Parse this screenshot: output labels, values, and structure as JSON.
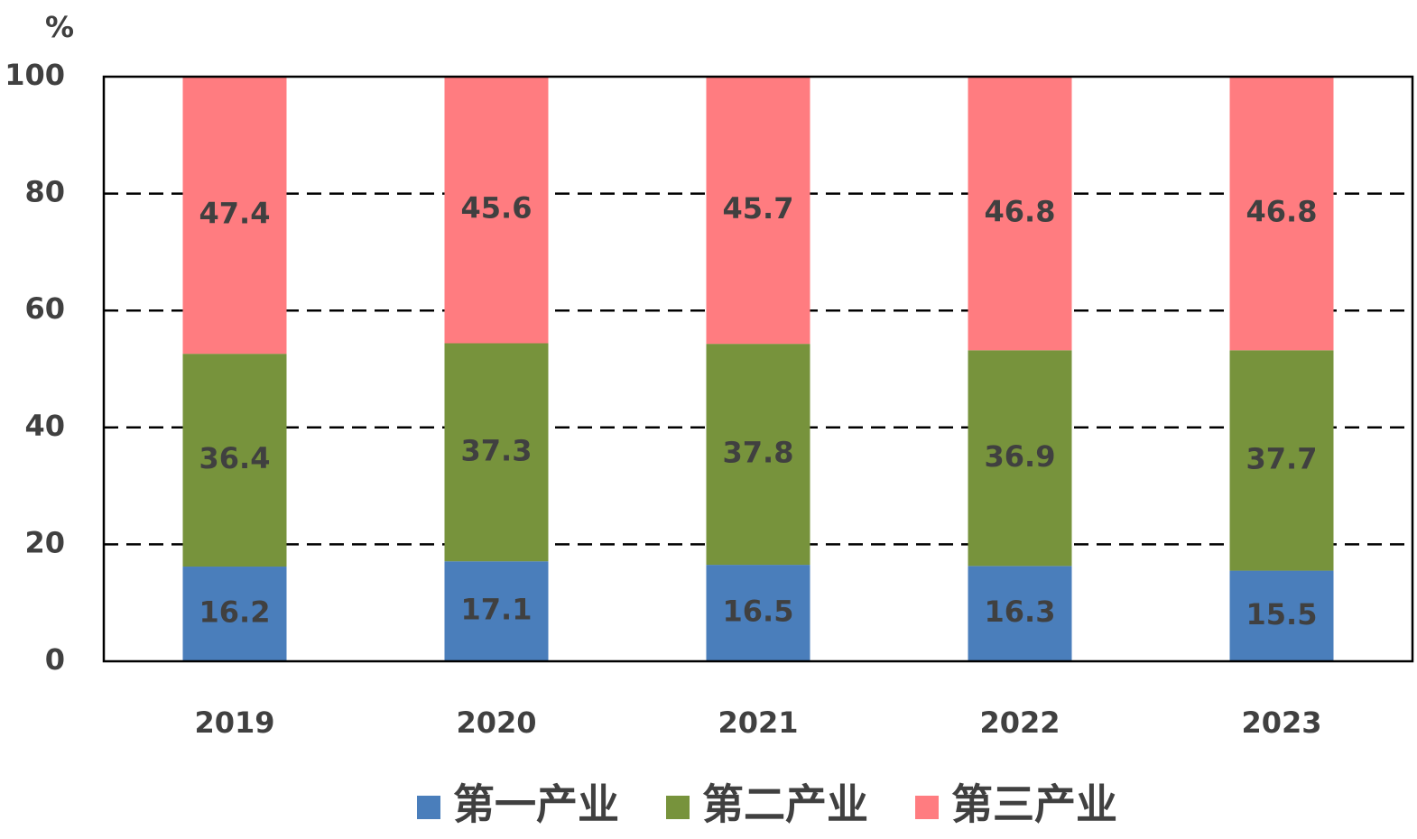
{
  "chart_data": {
    "type": "stacked-bar",
    "y_label": "%",
    "categories": [
      "2019",
      "2020",
      "2021",
      "2022",
      "2023"
    ],
    "series": [
      {
        "name": "第一产业",
        "color": "#4a7ebb",
        "values": [
          16.2,
          17.1,
          16.5,
          16.3,
          15.5
        ]
      },
      {
        "name": "第二产业",
        "color": "#77933c",
        "values": [
          36.4,
          37.3,
          37.8,
          36.9,
          37.7
        ]
      },
      {
        "name": "第三产业",
        "color": "#ff7c80",
        "values": [
          47.4,
          45.6,
          45.7,
          46.8,
          46.8
        ]
      }
    ],
    "ylim": [
      0,
      100
    ],
    "yticks": [
      0,
      20,
      40,
      60,
      80,
      100
    ],
    "grid": true,
    "legend": "bottom"
  }
}
